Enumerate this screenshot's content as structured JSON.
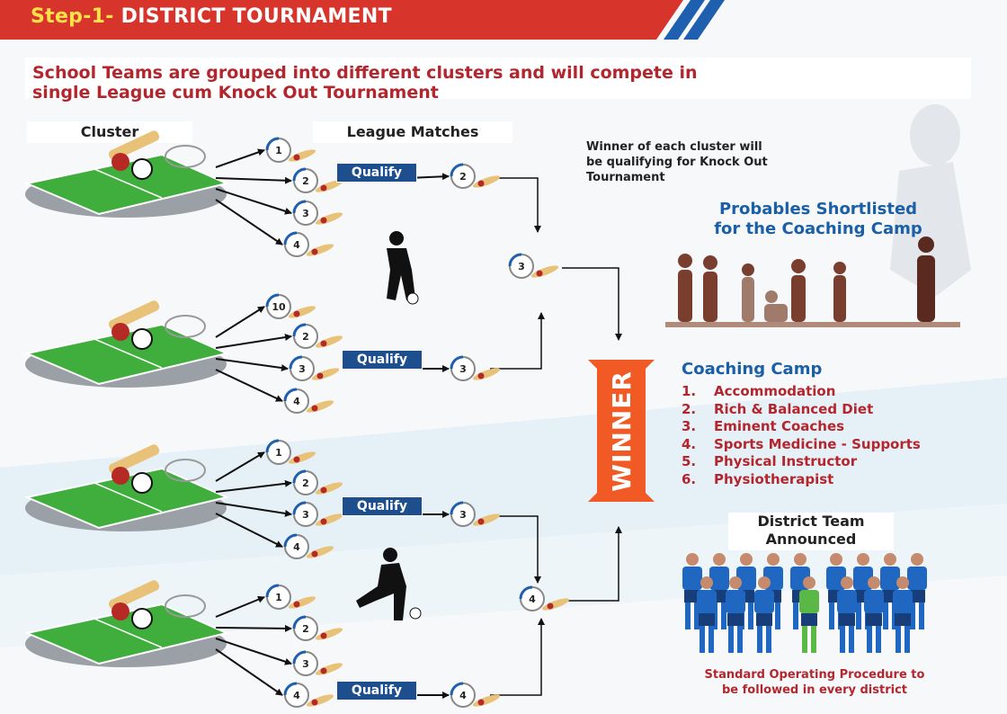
{
  "header": {
    "step": "Step-1-",
    "title": "DISTRICT TOURNAMENT"
  },
  "intro": {
    "line1": "School Teams are grouped into different clusters and will compete in",
    "line2": "single League cum Knock Out Tournament"
  },
  "labels": {
    "cluster": "Cluster",
    "league": "League Matches"
  },
  "qualify_note": {
    "line1": "Winner of each cluster will",
    "line2": "be qualifying for Knock Out",
    "line3": "Tournament"
  },
  "probables": {
    "line1": "Probables Shortlisted",
    "line2": "for the Coaching Camp"
  },
  "winner": "WINNER",
  "qualify_label": "Qualify",
  "clusters": [
    {
      "matches": [
        "1",
        "2",
        "3",
        "4"
      ],
      "qualifier": "2"
    },
    {
      "matches": [
        "10",
        "2",
        "3",
        "4"
      ],
      "qualifier": "3"
    },
    {
      "matches": [
        "1",
        "2",
        "3",
        "4"
      ],
      "qualifier": "3"
    },
    {
      "matches": [
        "1",
        "2",
        "3",
        "4"
      ],
      "qualifier": "4"
    }
  ],
  "knockout": [
    "3",
    "4"
  ],
  "coaching_camp": {
    "title": "Coaching Camp",
    "items": [
      {
        "num": "1.",
        "text": "Accommodation"
      },
      {
        "num": "2.",
        "text": "Rich & Balanced Diet"
      },
      {
        "num": "3.",
        "text": "Eminent Coaches"
      },
      {
        "num": "4.",
        "text": "Sports Medicine - Supports"
      },
      {
        "num": "5.",
        "text": "Physical Instructor"
      },
      {
        "num": "6.",
        "text": "Physiotherapist"
      }
    ]
  },
  "district_team": {
    "line1": "District Team",
    "line2": "Announced"
  },
  "sop": {
    "line1": "Standard Operating Procedure to",
    "line2": "be followed in every district"
  },
  "colors": {
    "header_red": "#d7342b",
    "stripe_blue": "#1f5fb0",
    "dark_red": "#b4262e",
    "blue": "#1b5fa6",
    "winner_orange": "#f15a24",
    "qualify_blue": "#1d4f8f",
    "field_green": "#3fae3c"
  }
}
